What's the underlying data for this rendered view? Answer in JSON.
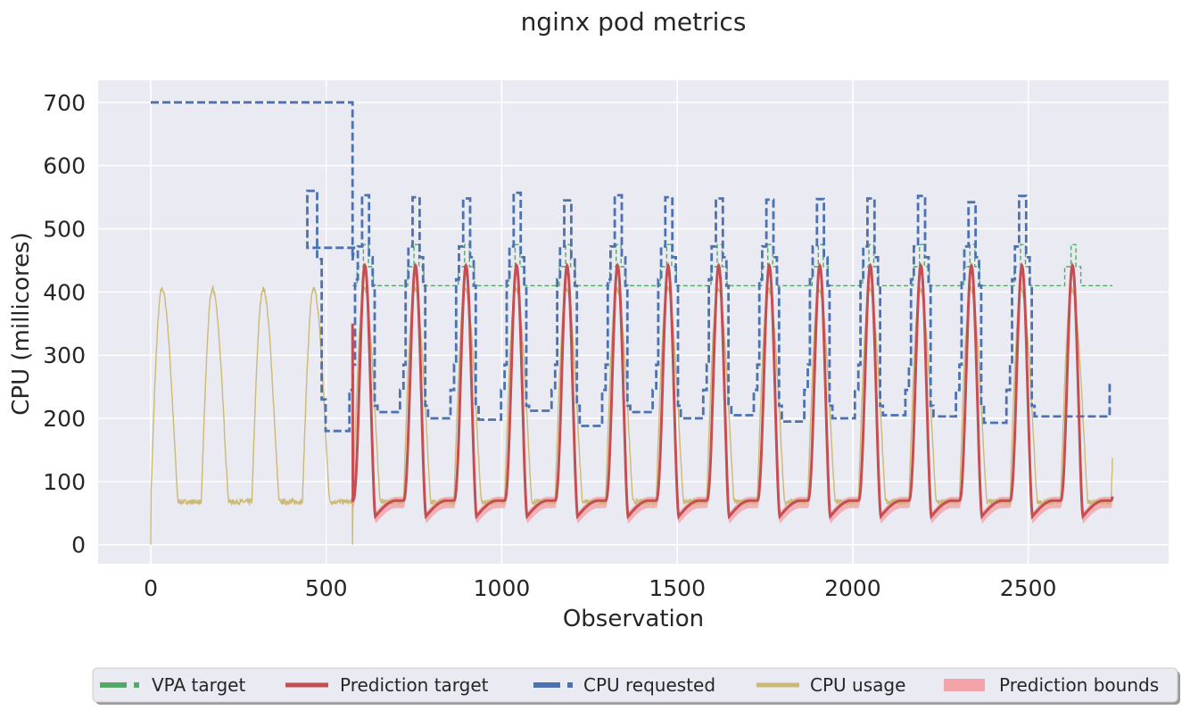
{
  "chart_data": {
    "type": "line",
    "title": "nginx pod metrics",
    "xlabel": "Observation",
    "ylabel": "CPU (millicores)",
    "xlim": [
      -150,
      2900
    ],
    "ylim": [
      -30,
      735
    ],
    "xticks": [
      0,
      500,
      1000,
      1500,
      2000,
      2500
    ],
    "yticks": [
      0,
      100,
      200,
      300,
      400,
      500,
      600,
      700
    ],
    "grid": true,
    "legend_position": "bottom-center",
    "cycle": {
      "period": 144,
      "first_cycle_start": 0,
      "peak_offset": 32,
      "vpa_start": 575
    },
    "series": [
      {
        "name": "VPA target",
        "color": "#55a868",
        "style": "dashed-thin",
        "baseline": 410,
        "step_levels": [
          440,
          475,
          440
        ],
        "end_x": 2740
      },
      {
        "name": "Prediction target",
        "color": "#c44e52",
        "style": "solid-thick",
        "start_x": 575,
        "end_x": 2740,
        "peak": 442,
        "trough": 45,
        "base": 70
      },
      {
        "name": "CPU requested",
        "color": "#4c72b0",
        "style": "dashed-thick",
        "initial": 700,
        "initial_end_x": 575,
        "peaks": [
          560,
          553,
          550,
          548,
          557,
          545,
          553,
          550,
          548,
          546,
          547,
          548,
          552,
          542,
          552
        ],
        "troughs": [
          180,
          210,
          200,
          198,
          212,
          188,
          210,
          200,
          205,
          195,
          200,
          205,
          203,
          193,
          203
        ],
        "end_x": 2740,
        "end_value": 255
      },
      {
        "name": "CPU usage",
        "color": "#ccb974",
        "style": "solid-thin",
        "start_x": 0,
        "end_x": 2740,
        "peak": 405,
        "base": 68,
        "noise": 4
      },
      {
        "name": "Prediction bounds",
        "color": "#f4a3a8",
        "style": "fill"
      }
    ]
  },
  "colors": {
    "plot_background": "#eaeaf2",
    "grid": "#ffffff",
    "text": "#262626"
  }
}
